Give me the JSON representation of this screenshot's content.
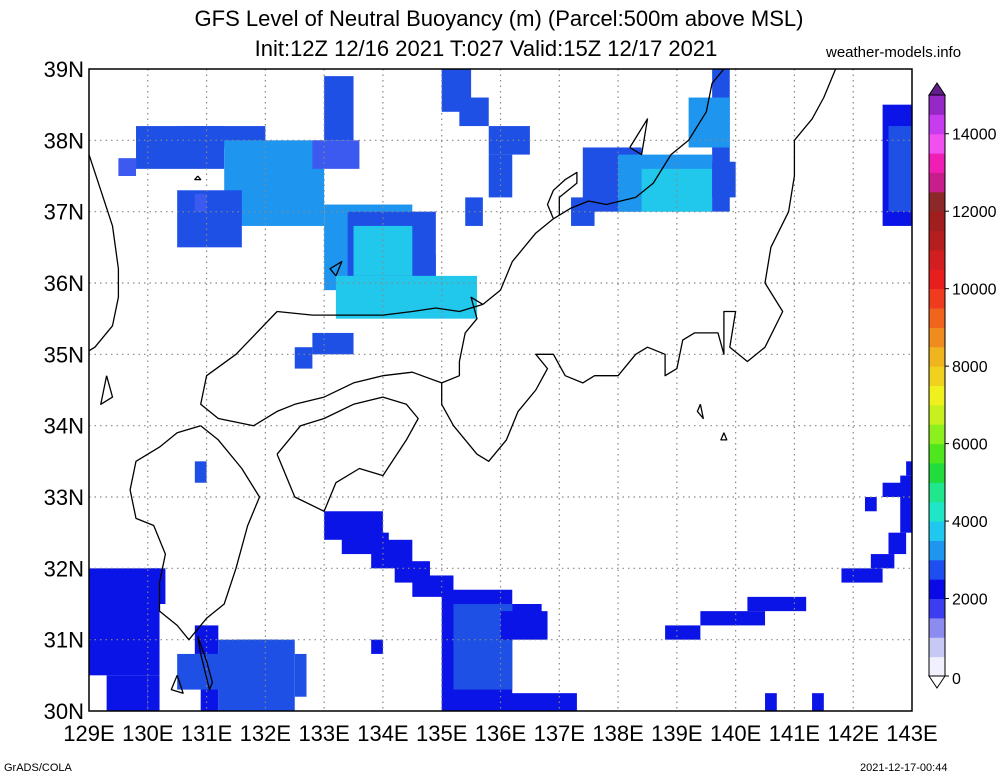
{
  "title": {
    "line1": "GFS Level of Neutral Buoyancy (m) (Parcel:500m above MSL)",
    "line2": "Init:12Z 12/16 2021 T:027 Valid:15Z 12/17 2021"
  },
  "source": "weather-models.info",
  "footer": {
    "left": "GrADS/COLA",
    "right": "2021-12-17-00:44"
  },
  "map": {
    "lon_range": [
      129,
      143
    ],
    "lat_range": [
      30,
      39
    ],
    "lon_labels": [
      "129E",
      "130E",
      "131E",
      "132E",
      "133E",
      "134E",
      "135E",
      "136E",
      "137E",
      "138E",
      "139E",
      "140E",
      "141E",
      "142E",
      "143E"
    ],
    "lat_labels": [
      "30N",
      "31N",
      "32N",
      "33N",
      "34N",
      "35N",
      "36N",
      "37N",
      "38N",
      "39N"
    ],
    "grid": true,
    "coastline_color": "#000000",
    "field": "Level of Neutral Buoyancy (m)"
  },
  "colorbar": {
    "labels": [
      "0",
      "2000",
      "4000",
      "6000",
      "8000",
      "10000",
      "12000",
      "14000"
    ],
    "values": [
      0,
      2000,
      4000,
      6000,
      8000,
      10000,
      12000,
      14000
    ],
    "max": 15000,
    "colors": [
      {
        "v": 0,
        "c": "#f0f0ff"
      },
      {
        "v": 500,
        "c": "#c8c8f5"
      },
      {
        "v": 1000,
        "c": "#8c8cf0"
      },
      {
        "v": 1500,
        "c": "#3c3cf0"
      },
      {
        "v": 2000,
        "c": "#0a0ae6"
      },
      {
        "v": 2500,
        "c": "#1e4ef0"
      },
      {
        "v": 3000,
        "c": "#1e96f0"
      },
      {
        "v": 3500,
        "c": "#20c8f0"
      },
      {
        "v": 4000,
        "c": "#20e6c8"
      },
      {
        "v": 4500,
        "c": "#20e68c"
      },
      {
        "v": 5000,
        "c": "#20dc3c"
      },
      {
        "v": 5500,
        "c": "#50e61e"
      },
      {
        "v": 6000,
        "c": "#8cf01e"
      },
      {
        "v": 6500,
        "c": "#c8f01e"
      },
      {
        "v": 7000,
        "c": "#f0f01e"
      },
      {
        "v": 7500,
        "c": "#f0d21e"
      },
      {
        "v": 8000,
        "c": "#f0b41e"
      },
      {
        "v": 8500,
        "c": "#f08c1e"
      },
      {
        "v": 9000,
        "c": "#f0641e"
      },
      {
        "v": 9500,
        "c": "#f03c1e"
      },
      {
        "v": 10000,
        "c": "#e61e1e"
      },
      {
        "v": 10500,
        "c": "#d21e1e"
      },
      {
        "v": 11000,
        "c": "#b41e1e"
      },
      {
        "v": 11500,
        "c": "#a01e1e"
      },
      {
        "v": 12000,
        "c": "#8c2828"
      },
      {
        "v": 12500,
        "c": "#c81e8c"
      },
      {
        "v": 13000,
        "c": "#f01eb4"
      },
      {
        "v": 13500,
        "c": "#f050f0"
      },
      {
        "v": 14000,
        "c": "#c83cf0"
      },
      {
        "v": 14500,
        "c": "#9628c8"
      },
      {
        "v": 15000,
        "c": "#641e8c"
      }
    ]
  },
  "field_palette": {
    "lb": "#3c5af0",
    "mb": "#1e50e6",
    "db": "#0a14e6",
    "ab": "#1e96f0",
    "cy": "#22c8ec"
  },
  "field_regions": [
    {
      "c": "mb",
      "lon": [
        129.8,
        131.3
      ],
      "lat": [
        37.6,
        38.2
      ]
    },
    {
      "c": "mb",
      "lon": [
        130.5,
        132.0
      ],
      "lat": [
        37.9,
        38.2
      ]
    },
    {
      "c": "ab",
      "lon": [
        131.3,
        133.0
      ],
      "lat": [
        36.8,
        38.0
      ]
    },
    {
      "c": "mb",
      "lon": [
        130.5,
        131.6
      ],
      "lat": [
        36.5,
        37.3
      ]
    },
    {
      "c": "lb",
      "lon": [
        129.5,
        129.8
      ],
      "lat": [
        37.5,
        37.75
      ]
    },
    {
      "c": "lb",
      "lon": [
        130.8,
        131.0
      ],
      "lat": [
        37.0,
        37.25
      ]
    },
    {
      "c": "lb",
      "lon": [
        132.8,
        133.6
      ],
      "lat": [
        37.6,
        38.0
      ]
    },
    {
      "c": "mb",
      "lon": [
        133.0,
        133.5
      ],
      "lat": [
        38.0,
        38.9
      ]
    },
    {
      "c": "ab",
      "lon": [
        133.0,
        134.5
      ],
      "lat": [
        35.9,
        37.1
      ]
    },
    {
      "c": "mb",
      "lon": [
        133.4,
        134.9
      ],
      "lat": [
        35.9,
        37.0
      ]
    },
    {
      "c": "mb",
      "lon": [
        134.6,
        134.9
      ],
      "lat": [
        36.0,
        36.4
      ]
    },
    {
      "c": "cy",
      "lon": [
        133.2,
        135.6
      ],
      "lat": [
        35.5,
        36.1
      ]
    },
    {
      "c": "cy",
      "lon": [
        133.5,
        134.5
      ],
      "lat": [
        36.1,
        36.8
      ]
    },
    {
      "c": "mb",
      "lon": [
        132.8,
        133.5
      ],
      "lat": [
        35.0,
        35.3
      ]
    },
    {
      "c": "mb",
      "lon": [
        132.5,
        132.8
      ],
      "lat": [
        34.8,
        35.1
      ]
    },
    {
      "c": "mb",
      "lon": [
        135.0,
        135.5
      ],
      "lat": [
        38.4,
        39.0
      ]
    },
    {
      "c": "mb",
      "lon": [
        135.3,
        135.8
      ],
      "lat": [
        38.2,
        38.6
      ]
    },
    {
      "c": "mb",
      "lon": [
        135.8,
        136.5
      ],
      "lat": [
        37.8,
        38.2
      ]
    },
    {
      "c": "mb",
      "lon": [
        135.8,
        136.2
      ],
      "lat": [
        37.2,
        37.8
      ]
    },
    {
      "c": "mb",
      "lon": [
        135.4,
        135.7
      ],
      "lat": [
        36.8,
        37.2
      ]
    },
    {
      "c": "mb",
      "lon": [
        130.8,
        131.0
      ],
      "lat": [
        33.2,
        33.5
      ]
    },
    {
      "c": "mb",
      "lon": [
        137.4,
        138.4
      ],
      "lat": [
        37.0,
        37.9
      ]
    },
    {
      "c": "ab",
      "lon": [
        138.0,
        139.6
      ],
      "lat": [
        37.0,
        37.8
      ]
    },
    {
      "c": "cy",
      "lon": [
        138.4,
        139.6
      ],
      "lat": [
        37.0,
        37.6
      ]
    },
    {
      "c": "mb",
      "lon": [
        139.6,
        139.9
      ],
      "lat": [
        37.0,
        39.0
      ]
    },
    {
      "c": "ab",
      "lon": [
        139.2,
        139.9
      ],
      "lat": [
        37.9,
        38.6
      ]
    },
    {
      "c": "mb",
      "lon": [
        139.6,
        140.0
      ],
      "lat": [
        37.2,
        37.7
      ]
    },
    {
      "c": "mb",
      "lon": [
        137.2,
        137.6
      ],
      "lat": [
        36.8,
        37.2
      ]
    },
    {
      "c": "db",
      "lon": [
        142.5,
        143.0
      ],
      "lat": [
        36.8,
        38.5
      ]
    },
    {
      "c": "mb",
      "lon": [
        142.6,
        143.0
      ],
      "lat": [
        37.0,
        38.2
      ]
    },
    {
      "c": "db",
      "lon": [
        129.0,
        130.2
      ],
      "lat": [
        30.5,
        32.0
      ]
    },
    {
      "c": "db",
      "lon": [
        129.3,
        130.0
      ],
      "lat": [
        30.0,
        30.5
      ]
    },
    {
      "c": "db",
      "lon": [
        130.0,
        130.3
      ],
      "lat": [
        31.5,
        32.0
      ]
    },
    {
      "c": "db",
      "lon": [
        130.0,
        130.2
      ],
      "lat": [
        30.0,
        30.5
      ]
    },
    {
      "c": "db",
      "lon": [
        130.8,
        131.0
      ],
      "lat": [
        30.8,
        31.2
      ]
    },
    {
      "c": "db",
      "lon": [
        130.9,
        131.2
      ],
      "lat": [
        30.0,
        31.2
      ]
    },
    {
      "c": "mb",
      "lon": [
        130.5,
        131.5
      ],
      "lat": [
        30.3,
        30.8
      ]
    },
    {
      "c": "mb",
      "lon": [
        131.2,
        132.5
      ],
      "lat": [
        30.0,
        31.0
      ]
    },
    {
      "c": "mb",
      "lon": [
        131.5,
        132.2
      ],
      "lat": [
        30.8,
        31.0
      ]
    },
    {
      "c": "mb",
      "lon": [
        132.5,
        132.7
      ],
      "lat": [
        30.2,
        30.8
      ]
    },
    {
      "c": "db",
      "lon": [
        133.0,
        134.0
      ],
      "lat": [
        32.4,
        32.8
      ]
    },
    {
      "c": "db",
      "lon": [
        133.3,
        134.1
      ],
      "lat": [
        32.2,
        32.5
      ]
    },
    {
      "c": "db",
      "lon": [
        133.8,
        134.5
      ],
      "lat": [
        32.0,
        32.4
      ]
    },
    {
      "c": "db",
      "lon": [
        134.2,
        134.8
      ],
      "lat": [
        31.8,
        32.1
      ]
    },
    {
      "c": "db",
      "lon": [
        134.5,
        135.2
      ],
      "lat": [
        31.6,
        31.9
      ]
    },
    {
      "c": "db",
      "lon": [
        135.0,
        136.2
      ],
      "lat": [
        30.0,
        31.7
      ]
    },
    {
      "c": "mb",
      "lon": [
        135.2,
        136.2
      ],
      "lat": [
        30.3,
        31.5
      ]
    },
    {
      "c": "db",
      "lon": [
        136.0,
        136.8
      ],
      "lat": [
        31.0,
        31.4
      ]
    },
    {
      "c": "db",
      "lon": [
        136.0,
        137.3
      ],
      "lat": [
        30.0,
        30.25
      ]
    },
    {
      "c": "db",
      "lon": [
        136.2,
        136.7
      ],
      "lat": [
        31.3,
        31.5
      ]
    },
    {
      "c": "db",
      "lon": [
        133.8,
        134.0
      ],
      "lat": [
        30.8,
        31.0
      ]
    },
    {
      "c": "db",
      "lon": [
        138.8,
        139.4
      ],
      "lat": [
        31.0,
        31.2
      ]
    },
    {
      "c": "db",
      "lon": [
        139.4,
        140.5
      ],
      "lat": [
        31.2,
        31.4
      ]
    },
    {
      "c": "db",
      "lon": [
        140.2,
        141.2
      ],
      "lat": [
        31.4,
        31.6
      ]
    },
    {
      "c": "db",
      "lon": [
        141.8,
        142.5
      ],
      "lat": [
        31.8,
        32.0
      ]
    },
    {
      "c": "db",
      "lon": [
        142.3,
        142.7
      ],
      "lat": [
        32.0,
        32.2
      ]
    },
    {
      "c": "db",
      "lon": [
        142.6,
        142.9
      ],
      "lat": [
        32.2,
        32.5
      ]
    },
    {
      "c": "db",
      "lon": [
        142.8,
        143.0
      ],
      "lat": [
        32.5,
        33.3
      ]
    },
    {
      "c": "db",
      "lon": [
        142.5,
        143.0
      ],
      "lat": [
        33.0,
        33.2
      ]
    },
    {
      "c": "db",
      "lon": [
        142.2,
        142.4
      ],
      "lat": [
        32.8,
        33.0
      ]
    },
    {
      "c": "db",
      "lon": [
        142.9,
        143.0
      ],
      "lat": [
        33.3,
        33.5
      ]
    },
    {
      "c": "db",
      "lon": [
        140.5,
        140.7
      ],
      "lat": [
        30.0,
        30.25
      ]
    },
    {
      "c": "db",
      "lon": [
        141.3,
        141.5
      ],
      "lat": [
        30.0,
        30.25
      ]
    }
  ],
  "coastlines": [
    [
      [
        132.2,
        35.6
      ],
      [
        132.8,
        35.55
      ],
      [
        133.2,
        35.55
      ],
      [
        133.6,
        35.55
      ],
      [
        134.0,
        35.55
      ],
      [
        134.5,
        35.6
      ],
      [
        134.9,
        35.65
      ],
      [
        135.3,
        35.6
      ],
      [
        135.7,
        35.7
      ],
      [
        136.0,
        35.9
      ],
      [
        136.2,
        36.3
      ],
      [
        136.6,
        36.7
      ],
      [
        136.9,
        36.9
      ],
      [
        137.2,
        37.05
      ],
      [
        137.5,
        37.15
      ],
      [
        137.8,
        37.1
      ],
      [
        138.3,
        37.2
      ],
      [
        138.6,
        37.4
      ],
      [
        138.9,
        37.8
      ],
      [
        139.2,
        38.0
      ],
      [
        139.5,
        38.4
      ],
      [
        139.6,
        38.8
      ],
      [
        139.8,
        39.0
      ]
    ],
    [
      [
        136.9,
        36.9
      ],
      [
        136.8,
        37.1
      ],
      [
        136.9,
        37.3
      ],
      [
        137.1,
        37.45
      ],
      [
        137.3,
        37.55
      ],
      [
        137.3,
        37.4
      ],
      [
        137.0,
        37.2
      ],
      [
        137.0,
        36.95
      ]
    ],
    [
      [
        135.7,
        35.7
      ],
      [
        135.5,
        35.8
      ],
      [
        135.6,
        35.5
      ],
      [
        135.4,
        35.3
      ],
      [
        135.3,
        34.9
      ],
      [
        135.3,
        34.7
      ],
      [
        135.0,
        34.6
      ],
      [
        135.0,
        34.3
      ],
      [
        135.2,
        34.0
      ],
      [
        135.6,
        33.6
      ],
      [
        135.8,
        33.5
      ],
      [
        136.1,
        33.8
      ],
      [
        136.3,
        34.2
      ],
      [
        136.6,
        34.5
      ],
      [
        136.8,
        34.8
      ],
      [
        136.6,
        35.0
      ],
      [
        136.9,
        35.0
      ],
      [
        137.1,
        34.7
      ],
      [
        137.4,
        34.6
      ],
      [
        137.6,
        34.7
      ],
      [
        138.0,
        34.7
      ],
      [
        138.3,
        35.0
      ],
      [
        138.5,
        35.1
      ],
      [
        138.8,
        35.0
      ],
      [
        138.8,
        34.7
      ],
      [
        139.0,
        34.8
      ],
      [
        139.1,
        35.2
      ],
      [
        139.3,
        35.3
      ],
      [
        139.7,
        35.3
      ],
      [
        139.8,
        35.0
      ],
      [
        139.8,
        35.6
      ],
      [
        140.0,
        35.6
      ],
      [
        139.9,
        35.1
      ],
      [
        140.2,
        34.9
      ],
      [
        140.5,
        35.1
      ],
      [
        140.8,
        35.6
      ],
      [
        140.5,
        36.0
      ],
      [
        140.6,
        36.5
      ],
      [
        140.9,
        37.0
      ],
      [
        141.0,
        37.5
      ],
      [
        141.0,
        38.0
      ],
      [
        141.3,
        38.3
      ],
      [
        141.5,
        38.6
      ],
      [
        141.7,
        39.0
      ]
    ],
    [
      [
        132.2,
        35.6
      ],
      [
        131.5,
        35.0
      ],
      [
        131.0,
        34.7
      ],
      [
        130.9,
        34.3
      ],
      [
        131.2,
        34.1
      ],
      [
        131.8,
        34.0
      ],
      [
        132.2,
        34.2
      ],
      [
        132.5,
        34.3
      ],
      [
        133.0,
        34.4
      ],
      [
        133.5,
        34.6
      ],
      [
        134.0,
        34.7
      ],
      [
        134.5,
        34.75
      ],
      [
        135.0,
        34.6
      ]
    ],
    [
      [
        130.9,
        34.0
      ],
      [
        130.5,
        33.9
      ],
      [
        130.2,
        33.7
      ],
      [
        129.8,
        33.5
      ],
      [
        129.7,
        33.1
      ],
      [
        129.8,
        32.7
      ],
      [
        130.1,
        32.6
      ],
      [
        130.3,
        32.2
      ],
      [
        130.2,
        31.8
      ],
      [
        130.2,
        31.4
      ],
      [
        130.5,
        31.2
      ],
      [
        130.7,
        31.0
      ],
      [
        131.0,
        31.3
      ],
      [
        131.3,
        31.5
      ],
      [
        131.5,
        32.0
      ],
      [
        131.7,
        32.6
      ],
      [
        131.9,
        33.0
      ],
      [
        131.6,
        33.4
      ],
      [
        131.2,
        33.8
      ],
      [
        130.9,
        34.0
      ]
    ],
    [
      [
        132.2,
        33.6
      ],
      [
        132.5,
        33.0
      ],
      [
        133.0,
        32.8
      ],
      [
        133.2,
        33.2
      ],
      [
        133.6,
        33.4
      ],
      [
        134.0,
        33.3
      ],
      [
        134.4,
        33.8
      ],
      [
        134.6,
        34.1
      ],
      [
        134.4,
        34.3
      ],
      [
        134.0,
        34.4
      ],
      [
        133.5,
        34.3
      ],
      [
        133.0,
        34.1
      ],
      [
        132.6,
        34.0
      ],
      [
        132.2,
        33.6
      ]
    ],
    [
      [
        129.0,
        37.8
      ],
      [
        129.2,
        37.3
      ],
      [
        129.4,
        36.8
      ],
      [
        129.5,
        36.2
      ],
      [
        129.5,
        35.8
      ],
      [
        129.4,
        35.4
      ],
      [
        129.1,
        35.1
      ],
      [
        129.0,
        35.05
      ]
    ],
    [
      [
        130.85,
        31.05
      ],
      [
        131.0,
        30.7
      ],
      [
        131.1,
        30.4
      ],
      [
        131.05,
        30.3
      ],
      [
        130.9,
        30.8
      ],
      [
        130.85,
        31.05
      ]
    ],
    [
      [
        130.5,
        30.5
      ],
      [
        130.6,
        30.25
      ],
      [
        130.4,
        30.3
      ],
      [
        130.5,
        30.5
      ]
    ],
    [
      [
        138.2,
        37.9
      ],
      [
        138.5,
        38.3
      ],
      [
        138.4,
        37.8
      ],
      [
        138.2,
        37.9
      ]
    ],
    [
      [
        133.2,
        36.1
      ],
      [
        133.3,
        36.3
      ],
      [
        133.1,
        36.2
      ],
      [
        133.2,
        36.1
      ]
    ],
    [
      [
        129.3,
        34.7
      ],
      [
        129.4,
        34.4
      ],
      [
        129.2,
        34.3
      ],
      [
        129.3,
        34.7
      ]
    ],
    [
      [
        130.85,
        37.5
      ],
      [
        130.9,
        37.45
      ],
      [
        130.8,
        37.45
      ],
      [
        130.85,
        37.5
      ]
    ],
    [
      [
        139.4,
        34.3
      ],
      [
        139.45,
        34.1
      ],
      [
        139.35,
        34.2
      ],
      [
        139.4,
        34.3
      ]
    ],
    [
      [
        139.8,
        33.9
      ],
      [
        139.85,
        33.8
      ],
      [
        139.75,
        33.8
      ],
      [
        139.8,
        33.9
      ]
    ]
  ]
}
